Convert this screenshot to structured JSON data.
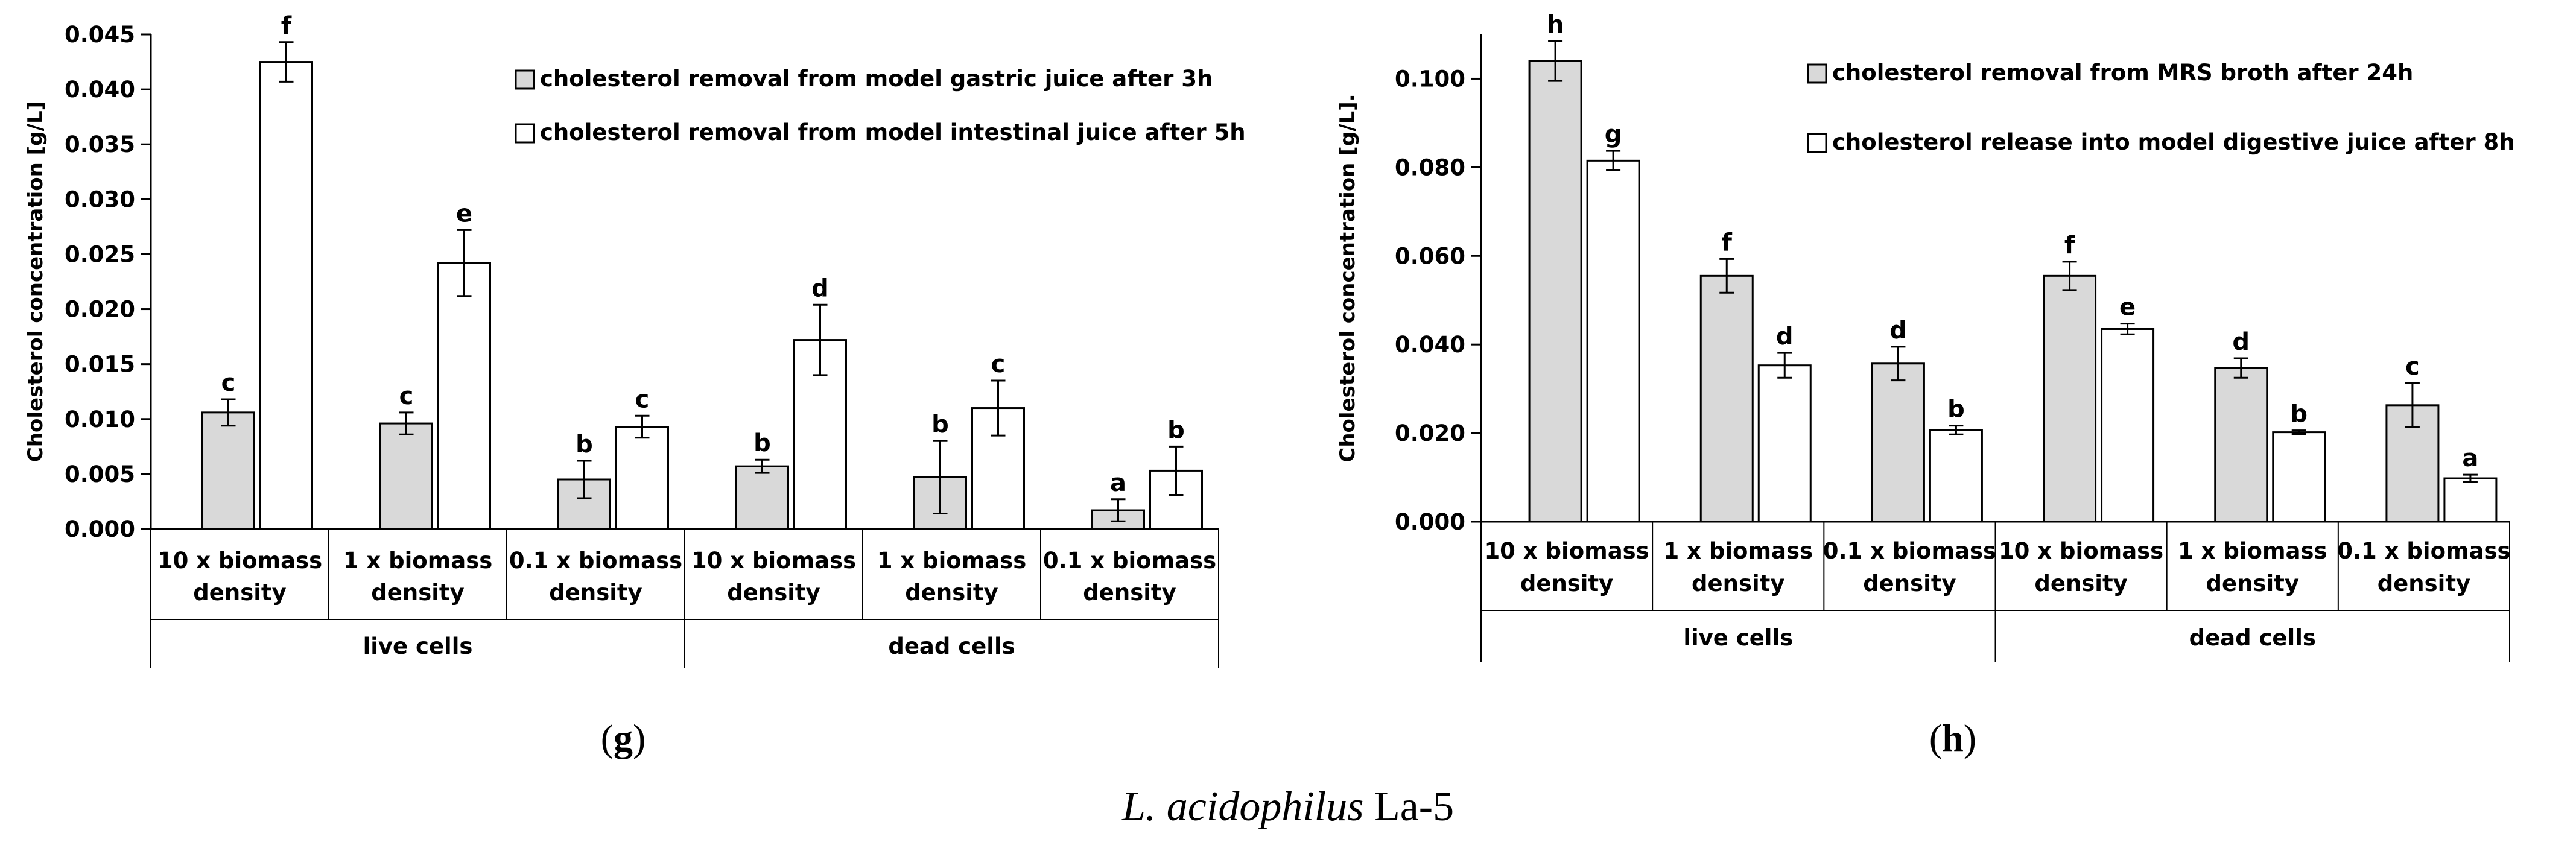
{
  "caption": {
    "species": "L. acidophilus",
    "strain": " La-5"
  },
  "chart_data": [
    {
      "type": "bar",
      "panel_label": "g",
      "ylabel": "Cholesterol concentration [g/L]",
      "ylim": [
        0,
        0.045
      ],
      "yticks": [
        "0.000",
        "0.005",
        "0.010",
        "0.015",
        "0.020",
        "0.025",
        "0.030",
        "0.035",
        "0.040",
        "0.045"
      ],
      "ytick_values": [
        0,
        0.005,
        0.01,
        0.015,
        0.02,
        0.025,
        0.03,
        0.035,
        0.04,
        0.045
      ],
      "categories": [
        [
          "10 x biomass",
          "density"
        ],
        [
          "1 x biomass",
          "density"
        ],
        [
          "0.1 x biomass",
          "density"
        ],
        [
          "10 x biomass",
          "density"
        ],
        [
          "1 x biomass",
          "density"
        ],
        [
          "0.1 x biomass",
          "density"
        ]
      ],
      "groups": [
        "live cells",
        "dead cells"
      ],
      "series": [
        {
          "name": "cholesterol removal from model gastric juice after 3h",
          "color": "#d9d9d9",
          "values": [
            0.0106,
            0.0096,
            0.0045,
            0.0057,
            0.0047,
            0.0017
          ],
          "errors": [
            0.0012,
            0.001,
            0.0017,
            0.0006,
            0.0033,
            0.001
          ],
          "letters": [
            "c",
            "c",
            "b",
            "b",
            "b",
            "a"
          ]
        },
        {
          "name": "cholesterol removal from model intestinal juice after 5h",
          "color": "#ffffff",
          "values": [
            0.0425,
            0.0242,
            0.0093,
            0.0172,
            0.011,
            0.0053
          ],
          "errors": [
            0.0018,
            0.003,
            0.001,
            0.0032,
            0.0025,
            0.0022
          ],
          "letters": [
            "f",
            "e",
            "c",
            "d",
            "c",
            "b"
          ]
        }
      ]
    },
    {
      "type": "bar",
      "panel_label": "h",
      "ylabel": "Cholesterol concentration [g/L].",
      "ylim": [
        0,
        0.11
      ],
      "yticks": [
        "0.000",
        "0.020",
        "0.040",
        "0.060",
        "0.080",
        "0.100"
      ],
      "ytick_values": [
        0,
        0.02,
        0.04,
        0.06,
        0.08,
        0.1
      ],
      "categories": [
        [
          "10 x biomass",
          "density"
        ],
        [
          "1 x biomass",
          "density"
        ],
        [
          "0.1 x biomass",
          "density"
        ],
        [
          "10 x biomass",
          "density"
        ],
        [
          "1 x biomass",
          "density"
        ],
        [
          "0.1 x biomass",
          "density"
        ]
      ],
      "groups": [
        "live cells",
        "dead cells"
      ],
      "series": [
        {
          "name": "cholesterol removal from MRS broth after 24h",
          "color": "#d9d9d9",
          "values": [
            0.104,
            0.0555,
            0.0357,
            0.0555,
            0.0347,
            0.0263
          ],
          "errors": [
            0.0045,
            0.0038,
            0.0038,
            0.0032,
            0.0022,
            0.005
          ],
          "letters": [
            "h",
            "f",
            "d",
            "f",
            "d",
            "c"
          ]
        },
        {
          "name": "cholesterol release into model digestive juice after 8h",
          "color": "#ffffff",
          "values": [
            0.0815,
            0.0353,
            0.0207,
            0.0435,
            0.0202,
            0.0098
          ],
          "errors": [
            0.0022,
            0.0028,
            0.001,
            0.0012,
            0.0004,
            0.0008
          ],
          "letters": [
            "g",
            "d",
            "b",
            "e",
            "b",
            "a"
          ]
        }
      ]
    }
  ]
}
